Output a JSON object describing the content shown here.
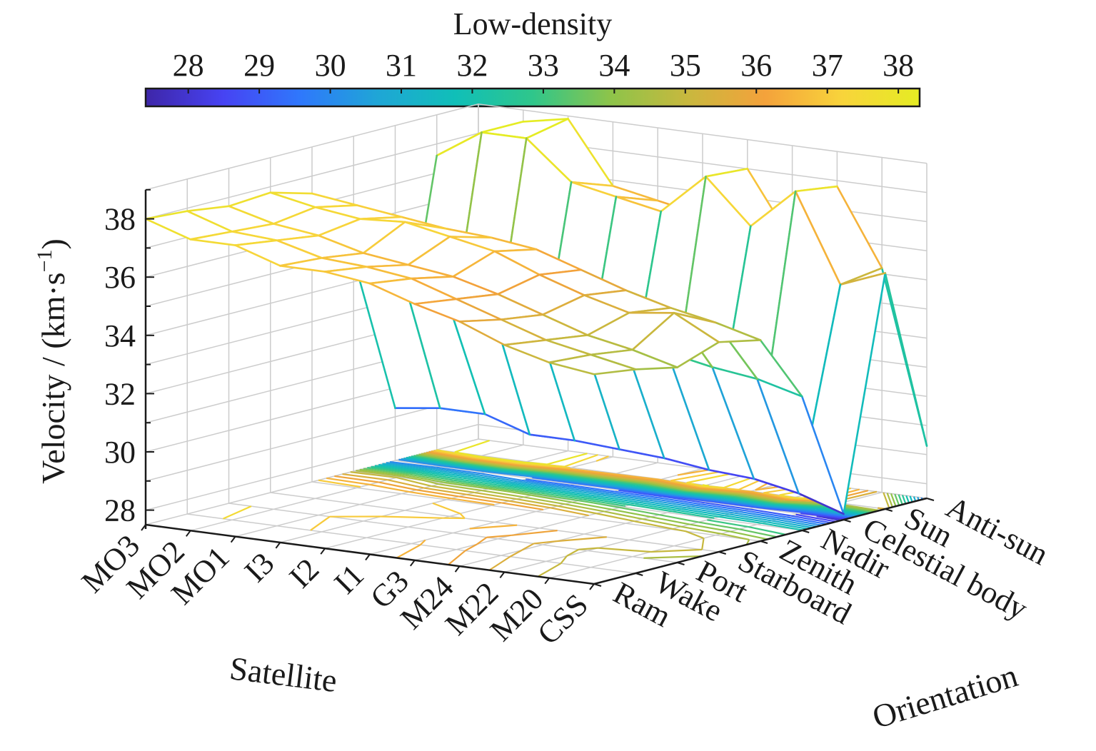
{
  "chart_data": {
    "type": "surface-3d",
    "title": "",
    "colorbar": {
      "title": "Low-density",
      "ticks": [
        28,
        29,
        30,
        31,
        32,
        33,
        34,
        35,
        36,
        37,
        38
      ],
      "range": [
        27.4,
        38.3
      ],
      "colormap": [
        "#3e26a8",
        "#4743f3",
        "#2f78fc",
        "#1fa6d6",
        "#10bfb8",
        "#2fc68b",
        "#8dc44a",
        "#c8b83e",
        "#f4a23b",
        "#f8d43b",
        "#e5ec23"
      ]
    },
    "xlabel": "Satellite",
    "ylabel": "Orientation",
    "zlabel": "Velocity / (km·s",
    "zlabel_exp": "−1",
    "zlabel_close": ")",
    "satellites": [
      "MO3",
      "MO2",
      "MO1",
      "I3",
      "I2",
      "I1",
      "G3",
      "M24",
      "M22",
      "M20",
      "CSS"
    ],
    "orientations": [
      "Ram",
      "Wake",
      "Port",
      "Starboard",
      "Zenith",
      "Nadir",
      "Celestial body",
      "Sun",
      "Anti-sun"
    ],
    "zticks": [
      28,
      30,
      32,
      34,
      36,
      38
    ],
    "zlim": [
      27.5,
      39
    ],
    "grid": true,
    "velocity": [
      [
        38.0,
        37.5,
        37.5,
        37.0,
        37.0,
        36.8,
        36.3,
        35.9,
        35.3,
        34.9,
        34.7
      ],
      [
        37.9,
        37.4,
        37.3,
        36.9,
        36.8,
        36.6,
        36.1,
        35.6,
        35.1,
        34.8,
        34.5
      ],
      [
        37.7,
        37.3,
        37.1,
        36.7,
        36.5,
        36.3,
        35.9,
        35.4,
        34.9,
        34.6,
        34.2
      ],
      [
        37.8,
        37.5,
        37.3,
        37.4,
        37.1,
        36.8,
        36.2,
        35.7,
        35.3,
        35.5,
        34.7
      ],
      [
        37.4,
        37.2,
        37.0,
        36.8,
        36.7,
        36.5,
        36.0,
        35.5,
        35.1,
        34.8,
        34.4
      ],
      [
        34.8,
        34.9,
        34.2,
        34.1,
        33.9,
        33.6,
        33.3,
        33.0,
        32.7,
        32.5,
        32.1
      ],
      [
        29.3,
        29.5,
        29.5,
        29.0,
        29.0,
        28.9,
        28.8,
        28.6,
        28.5,
        28.2,
        27.7
      ],
      [
        37.6,
        38.6,
        38.6,
        37.3,
        37.0,
        36.7,
        38.1,
        36.6,
        38.0,
        35.0,
        35.6
      ],
      [
        37.8,
        38.6,
        38.9,
        36.8,
        36.5,
        36.2,
        38.0,
        35.7,
        37.8,
        35.2,
        29.3
      ]
    ]
  }
}
